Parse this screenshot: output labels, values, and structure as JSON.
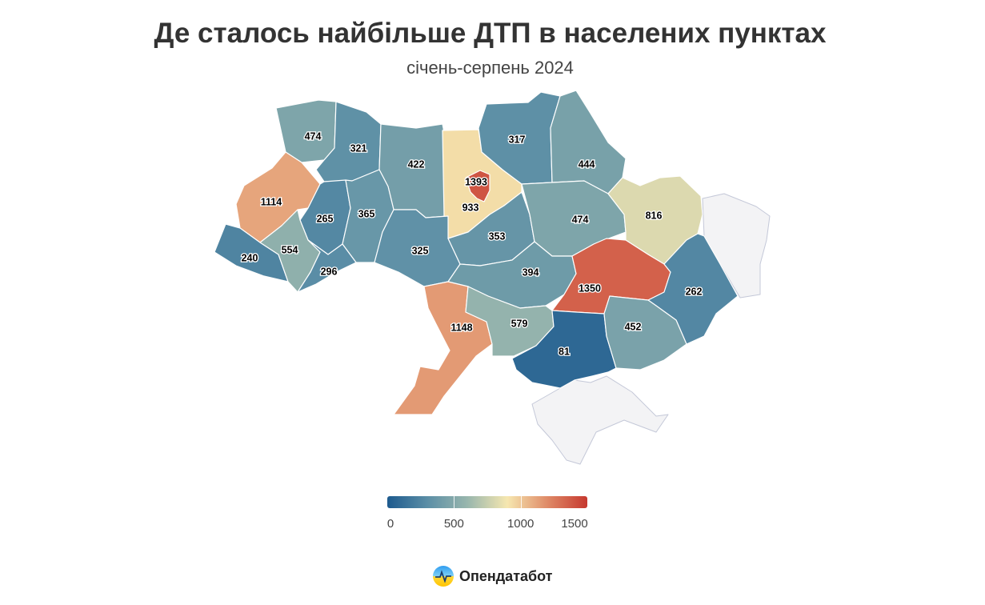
{
  "title": "Де сталось найбільше ДТП в населених пунктах",
  "subtitle": "січень-серпень 2024",
  "regions": [
    {
      "id": "volyn",
      "value": 474
    },
    {
      "id": "rivne",
      "value": 321
    },
    {
      "id": "zhytomyr",
      "value": 422
    },
    {
      "id": "kyiv-oblast",
      "value": 933
    },
    {
      "id": "kyiv-city",
      "value": 1393
    },
    {
      "id": "chernihiv",
      "value": 317
    },
    {
      "id": "sumy",
      "value": 444
    },
    {
      "id": "lviv",
      "value": 1114
    },
    {
      "id": "ternopil",
      "value": 265
    },
    {
      "id": "khmelnytskyi",
      "value": 365
    },
    {
      "id": "vinnytsia",
      "value": 325
    },
    {
      "id": "cherkasy",
      "value": 353
    },
    {
      "id": "poltava",
      "value": 474
    },
    {
      "id": "kharkiv",
      "value": 816
    },
    {
      "id": "zakarpattia",
      "value": 240
    },
    {
      "id": "ivano-frankivsk",
      "value": 554
    },
    {
      "id": "chernivtsi",
      "value": 296
    },
    {
      "id": "kirovohrad",
      "value": 394
    },
    {
      "id": "dnipropetrovsk",
      "value": 1350
    },
    {
      "id": "donetsk",
      "value": 262
    },
    {
      "id": "odesa",
      "value": 1148
    },
    {
      "id": "mykolaiv",
      "value": 579
    },
    {
      "id": "kherson",
      "value": 81
    },
    {
      "id": "zaporizhzhia",
      "value": 452
    },
    {
      "id": "luhansk",
      "value": null
    },
    {
      "id": "crimea",
      "value": null
    }
  ],
  "legend": {
    "min": 0,
    "max": 1500,
    "ticks": [
      "0",
      "500",
      "1000",
      "1500"
    ],
    "colors": [
      "#1d5a8e",
      "#5b8ea6",
      "#98b6ad",
      "#f6e7b0",
      "#df8a67",
      "#c6382f"
    ]
  },
  "nodata_color": "#f3f3f5",
  "brand": {
    "name": "Опендатабот"
  }
}
